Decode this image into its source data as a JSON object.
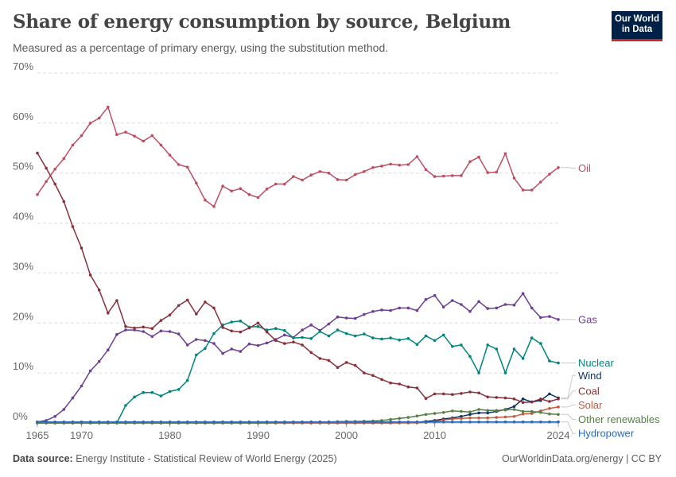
{
  "header": {
    "title": "Share of energy consumption by source, Belgium",
    "subtitle": "Measured as a percentage of primary energy, using the substitution method.",
    "logo_line1": "Our World",
    "logo_line2": "in Data"
  },
  "footer": {
    "source_label": "Data source:",
    "source_text": "Energy Institute - Statistical Review of World Energy (2025)",
    "right_text": "OurWorldinData.org/energy | CC BY"
  },
  "chart_data": {
    "type": "line",
    "title": "Share of energy consumption by source, Belgium",
    "subtitle": "Measured as a percentage of primary energy, using the substitution method.",
    "xlim": [
      1965,
      2024
    ],
    "ylim": [
      0,
      70
    ],
    "x_ticks": [
      1965,
      1970,
      1980,
      1990,
      2000,
      2010,
      2024
    ],
    "y_ticks": [
      0,
      10,
      20,
      30,
      40,
      50,
      60,
      70
    ],
    "y_tick_labels": [
      "0%",
      "10%",
      "20%",
      "30%",
      "40%",
      "50%",
      "60%",
      "70%"
    ],
    "grid": "horizontal dashed",
    "legend": "inline labels at right end of lines",
    "x": [
      1965,
      1966,
      1967,
      1968,
      1969,
      1970,
      1971,
      1972,
      1973,
      1974,
      1975,
      1976,
      1977,
      1978,
      1979,
      1980,
      1981,
      1982,
      1983,
      1984,
      1985,
      1986,
      1987,
      1988,
      1989,
      1990,
      1991,
      1992,
      1993,
      1994,
      1995,
      1996,
      1997,
      1998,
      1999,
      2000,
      2001,
      2002,
      2003,
      2004,
      2005,
      2006,
      2007,
      2008,
      2009,
      2010,
      2011,
      2012,
      2013,
      2014,
      2015,
      2016,
      2017,
      2018,
      2019,
      2020,
      2021,
      2022,
      2023,
      2024
    ],
    "series": [
      {
        "name": "Oil",
        "color": "#be4d62",
        "label_y": 51.0,
        "values": [
          45.7,
          48.3,
          50.8,
          52.9,
          55.6,
          57.5,
          60.0,
          61.0,
          63.2,
          57.7,
          58.2,
          57.4,
          56.4,
          57.5,
          55.6,
          53.6,
          51.7,
          51.2,
          48.0,
          44.6,
          43.3,
          47.4,
          46.4,
          46.9,
          45.7,
          45.1,
          46.8,
          47.8,
          47.8,
          49.3,
          48.6,
          49.6,
          50.3,
          50.0,
          48.7,
          48.6,
          49.7,
          50.3,
          51.1,
          51.4,
          51.8,
          51.6,
          51.7,
          53.3,
          50.7,
          49.3,
          49.4,
          49.5,
          49.5,
          52.3,
          53.2,
          50.1,
          50.2,
          53.9,
          49.0,
          46.6,
          46.6,
          48.2,
          49.8,
          51.1
        ]
      },
      {
        "name": "Gas",
        "color": "#6d3e91",
        "label_y": 20.7,
        "values": [
          0.2,
          0.5,
          1.3,
          2.7,
          5.0,
          7.4,
          10.4,
          12.3,
          14.6,
          17.7,
          18.6,
          18.6,
          18.3,
          17.3,
          18.4,
          18.3,
          17.8,
          15.6,
          16.7,
          16.5,
          15.9,
          13.9,
          14.8,
          14.3,
          15.8,
          15.5,
          16.0,
          16.7,
          17.6,
          17.1,
          18.6,
          19.6,
          18.5,
          19.8,
          21.2,
          21.0,
          20.9,
          21.7,
          22.3,
          22.6,
          22.5,
          23.0,
          23.0,
          22.5,
          24.7,
          25.5,
          23.2,
          24.5,
          23.7,
          22.3,
          24.3,
          22.9,
          23.0,
          23.7,
          23.6,
          25.9,
          23.0,
          21.1,
          21.3,
          20.7
        ]
      },
      {
        "name": "Nuclear",
        "color": "#00847e",
        "label_y": 12.0,
        "values": [
          0,
          0,
          0,
          0,
          0,
          0,
          0,
          0,
          0,
          0,
          3.5,
          5.2,
          6.1,
          6.1,
          5.4,
          6.3,
          6.7,
          8.5,
          13.6,
          14.9,
          17.9,
          19.6,
          20.2,
          20.4,
          19.2,
          19.3,
          18.6,
          18.9,
          18.5,
          17.0,
          17.1,
          16.9,
          18.3,
          17.4,
          18.6,
          17.9,
          17.4,
          17.8,
          17.0,
          16.8,
          17.0,
          16.6,
          16.9,
          15.7,
          17.4,
          16.5,
          17.6,
          15.3,
          15.6,
          13.3,
          10.0,
          15.6,
          14.8,
          10.0,
          14.8,
          12.9,
          17.0,
          15.9,
          12.4,
          12.0
        ]
      },
      {
        "name": "Wind",
        "color": "#0c2f5e",
        "label_y": 9.5,
        "values": [
          0,
          0,
          0,
          0,
          0,
          0,
          0,
          0,
          0,
          0,
          0,
          0,
          0,
          0,
          0,
          0,
          0,
          0,
          0,
          0,
          0,
          0,
          0,
          0,
          0,
          0,
          0,
          0,
          0,
          0,
          0,
          0,
          0,
          0,
          0,
          0,
          0,
          0,
          0,
          0,
          0,
          0.05,
          0.1,
          0.15,
          0.3,
          0.5,
          0.8,
          1.0,
          1.3,
          1.7,
          2.0,
          2.0,
          2.3,
          2.7,
          3.3,
          4.8,
          4.2,
          4.5,
          5.8,
          5.0
        ]
      },
      {
        "name": "Coal",
        "color": "#883039",
        "label_y": 6.4,
        "values": [
          54.0,
          51.0,
          47.8,
          44.3,
          39.3,
          35.0,
          29.6,
          26.6,
          22.0,
          24.5,
          19.3,
          19.0,
          19.2,
          18.9,
          20.5,
          21.6,
          23.5,
          24.6,
          21.8,
          24.2,
          23.0,
          19.1,
          18.4,
          18.2,
          19.0,
          20.0,
          18.2,
          16.5,
          15.9,
          16.2,
          15.6,
          14.1,
          12.9,
          12.5,
          11.1,
          12.1,
          11.5,
          10.0,
          9.5,
          8.7,
          8.0,
          7.8,
          7.2,
          7.0,
          4.9,
          5.8,
          5.8,
          5.7,
          5.9,
          6.2,
          6.0,
          5.2,
          5.1,
          5.0,
          4.8,
          4.1,
          4.2,
          4.8,
          4.3,
          4.8
        ]
      },
      {
        "name": "Solar",
        "color": "#c15b3d",
        "label_y": 3.6,
        "values": [
          0,
          0,
          0,
          0,
          0,
          0,
          0,
          0,
          0,
          0,
          0,
          0,
          0,
          0,
          0,
          0,
          0,
          0,
          0,
          0,
          0,
          0,
          0,
          0,
          0,
          0,
          0,
          0,
          0,
          0,
          0,
          0,
          0,
          0,
          0,
          0,
          0,
          0,
          0,
          0,
          0,
          0,
          0,
          0.02,
          0.1,
          0.3,
          0.6,
          0.8,
          0.9,
          1.0,
          1.0,
          1.0,
          1.1,
          1.2,
          1.3,
          1.8,
          1.9,
          2.4,
          2.9,
          3.2
        ]
      },
      {
        "name": "Other renewables",
        "color": "#578145",
        "label_y": 0.7,
        "values": [
          0,
          0,
          0,
          0,
          0,
          0,
          0,
          0,
          0,
          0,
          0,
          0,
          0,
          0,
          0,
          0,
          0,
          0,
          0,
          0,
          0,
          0,
          0,
          0,
          0,
          0,
          0.05,
          0.1,
          0.1,
          0.15,
          0.15,
          0.2,
          0.2,
          0.2,
          0.25,
          0.3,
          0.3,
          0.35,
          0.4,
          0.5,
          0.7,
          0.9,
          1.1,
          1.4,
          1.7,
          1.9,
          2.1,
          2.4,
          2.3,
          2.2,
          2.7,
          2.5,
          2.5,
          2.6,
          2.7,
          2.3,
          2.3,
          2.1,
          1.8,
          1.7
        ]
      },
      {
        "name": "Hydropower",
        "color": "#286bbb",
        "label_y": -2.1,
        "values": [
          0.2,
          0.2,
          0.2,
          0.2,
          0.2,
          0.2,
          0.2,
          0.2,
          0.2,
          0.2,
          0.2,
          0.2,
          0.2,
          0.2,
          0.2,
          0.2,
          0.2,
          0.2,
          0.2,
          0.2,
          0.2,
          0.2,
          0.2,
          0.2,
          0.2,
          0.2,
          0.2,
          0.2,
          0.2,
          0.2,
          0.2,
          0.2,
          0.2,
          0.2,
          0.2,
          0.2,
          0.2,
          0.2,
          0.2,
          0.2,
          0.2,
          0.2,
          0.2,
          0.2,
          0.2,
          0.2,
          0.2,
          0.2,
          0.2,
          0.2,
          0.2,
          0.2,
          0.2,
          0.2,
          0.2,
          0.2,
          0.2,
          0.2,
          0.2,
          0.2
        ]
      }
    ]
  }
}
